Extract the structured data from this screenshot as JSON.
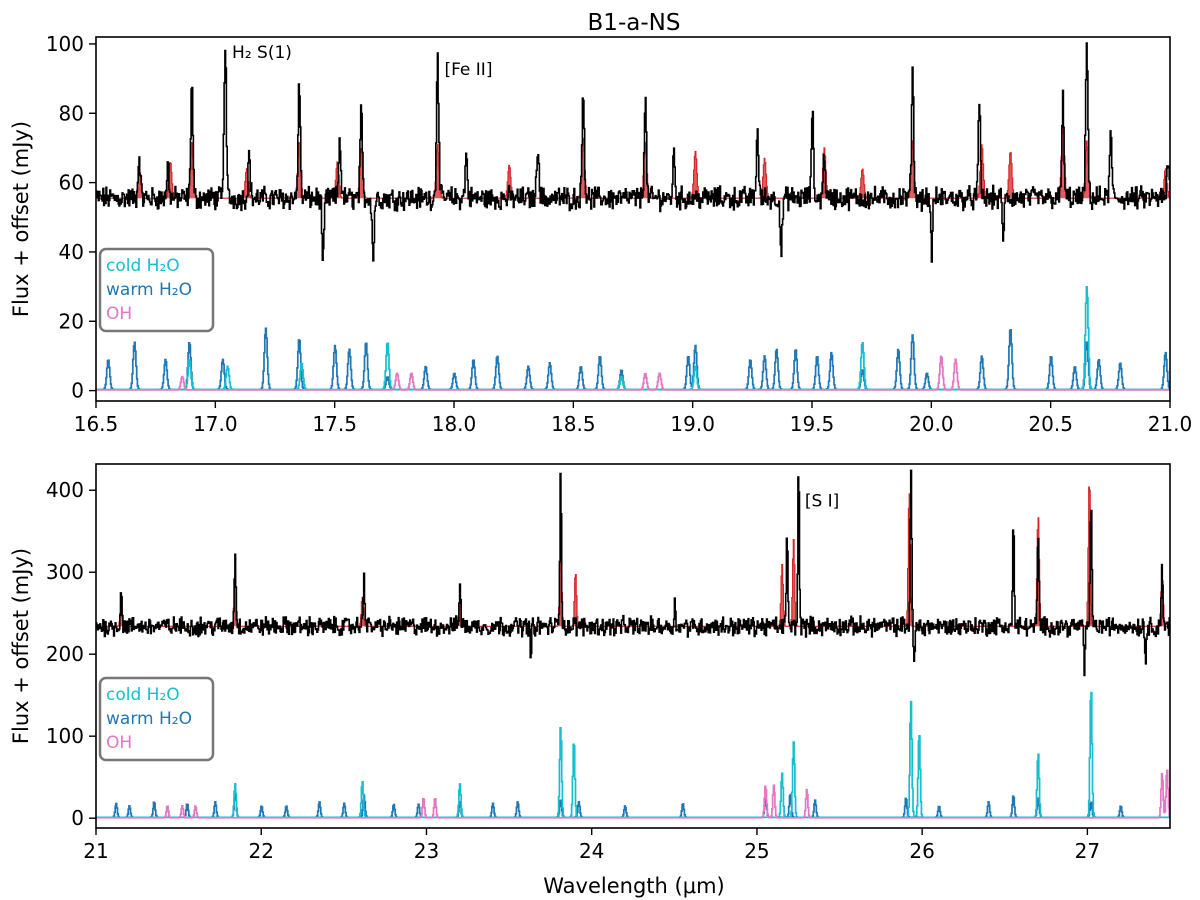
{
  "figure": {
    "title": "B1-a-NS",
    "xlabel": "Wavelength (μm)",
    "legend_entries": [
      {
        "label": "cold H₂O",
        "color": "#17becf"
      },
      {
        "label": "warm H₂O",
        "color": "#1f77b4"
      },
      {
        "label": "OH",
        "color": "#e377c2"
      }
    ]
  },
  "chart_data": [
    {
      "type": "line",
      "ylabel": "Flux + offset (mJy)",
      "xlim": [
        16.5,
        21.0
      ],
      "ylim": [
        -3,
        102
      ],
      "xticks": [
        16.5,
        17.0,
        17.5,
        18.0,
        18.5,
        19.0,
        19.5,
        20.0,
        20.5,
        21.0
      ],
      "xtick_labels": [
        "16.5",
        "17.0",
        "17.5",
        "18.0",
        "18.5",
        "19.0",
        "19.5",
        "20.0",
        "20.5",
        "21.0"
      ],
      "yticks": [
        0,
        20,
        40,
        60,
        80,
        100
      ],
      "ytick_labels": [
        "0",
        "20",
        "40",
        "60",
        "80",
        "100"
      ],
      "legend_position": "center-left",
      "colors": {
        "observed": "#000000",
        "model": "#d62728",
        "cold": "#17becf",
        "warm": "#1f77b4",
        "oh": "#e377c2"
      },
      "observed": {
        "baseline": 55.5,
        "noise": 2.6,
        "peaks": [
          [
            16.68,
            68
          ],
          [
            16.8,
            65
          ],
          [
            16.9,
            89
          ],
          [
            17.04,
            101
          ],
          [
            17.14,
            68
          ],
          [
            17.35,
            89
          ],
          [
            17.52,
            73
          ],
          [
            17.61,
            80
          ],
          [
            17.93,
            98
          ],
          [
            18.05,
            68
          ],
          [
            18.35,
            72
          ],
          [
            18.54,
            88
          ],
          [
            18.8,
            84
          ],
          [
            18.92,
            68
          ],
          [
            19.27,
            75
          ],
          [
            19.5,
            80
          ],
          [
            19.55,
            68
          ],
          [
            19.92,
            92
          ],
          [
            20.2,
            82
          ],
          [
            20.55,
            84
          ],
          [
            20.65,
            101
          ],
          [
            20.75,
            74
          ],
          [
            20.99,
            66
          ]
        ],
        "dips": [
          [
            17.45,
            36
          ],
          [
            17.66,
            38
          ],
          [
            19.37,
            39
          ],
          [
            20.0,
            40
          ],
          [
            20.3,
            45
          ]
        ]
      },
      "model": {
        "baseline": 55.5,
        "peaks": [
          [
            16.68,
            64
          ],
          [
            16.81,
            66
          ],
          [
            16.9,
            72
          ],
          [
            17.13,
            64
          ],
          [
            17.35,
            72
          ],
          [
            17.51,
            66
          ],
          [
            17.61,
            70
          ],
          [
            17.93,
            71
          ],
          [
            18.23,
            65
          ],
          [
            18.54,
            73
          ],
          [
            18.8,
            72
          ],
          [
            19.01,
            69
          ],
          [
            19.3,
            67
          ],
          [
            19.55,
            70
          ],
          [
            19.71,
            64
          ],
          [
            19.92,
            72
          ],
          [
            20.21,
            71
          ],
          [
            20.33,
            69
          ],
          [
            20.55,
            77
          ],
          [
            20.65,
            72
          ],
          [
            20.98,
            64
          ]
        ]
      },
      "cold": {
        "baseline": 0.3,
        "peaks": [
          [
            16.89,
            9
          ],
          [
            17.05,
            7
          ],
          [
            17.36,
            8
          ],
          [
            17.72,
            14
          ],
          [
            18.7,
            4
          ],
          [
            19.01,
            7
          ],
          [
            19.71,
            14
          ],
          [
            20.65,
            30
          ]
        ]
      },
      "warm": {
        "baseline": 0.3,
        "peaks": [
          [
            16.55,
            9
          ],
          [
            16.66,
            14
          ],
          [
            16.79,
            9
          ],
          [
            16.89,
            14
          ],
          [
            17.03,
            9
          ],
          [
            17.21,
            18
          ],
          [
            17.35,
            15
          ],
          [
            17.5,
            13
          ],
          [
            17.56,
            12
          ],
          [
            17.63,
            14
          ],
          [
            17.72,
            4
          ],
          [
            17.88,
            7
          ],
          [
            18.0,
            5
          ],
          [
            18.08,
            9
          ],
          [
            18.18,
            10
          ],
          [
            18.31,
            7
          ],
          [
            18.4,
            8
          ],
          [
            18.53,
            7
          ],
          [
            18.61,
            10
          ],
          [
            18.7,
            6
          ],
          [
            18.98,
            10
          ],
          [
            19.01,
            13
          ],
          [
            19.24,
            9
          ],
          [
            19.3,
            10
          ],
          [
            19.35,
            12
          ],
          [
            19.43,
            12
          ],
          [
            19.52,
            10
          ],
          [
            19.58,
            11
          ],
          [
            19.71,
            6
          ],
          [
            19.86,
            12
          ],
          [
            19.92,
            16
          ],
          [
            19.98,
            5
          ],
          [
            20.21,
            10
          ],
          [
            20.33,
            18
          ],
          [
            20.5,
            10
          ],
          [
            20.6,
            7
          ],
          [
            20.65,
            14
          ],
          [
            20.7,
            9
          ],
          [
            20.79,
            8
          ],
          [
            20.98,
            11
          ]
        ]
      },
      "oh": {
        "baseline": 0.2,
        "peaks": [
          [
            16.86,
            4
          ],
          [
            17.76,
            5
          ],
          [
            17.82,
            5
          ],
          [
            18.8,
            5
          ],
          [
            18.86,
            5
          ],
          [
            20.04,
            10
          ],
          [
            20.1,
            9
          ]
        ]
      },
      "annotations": [
        {
          "text": "H₂ S(1)",
          "x": 17.07,
          "y": 96
        },
        {
          "text": "[Fe II]",
          "x": 17.96,
          "y": 91
        }
      ]
    },
    {
      "type": "line",
      "ylabel": "Flux + offset (mJy)",
      "xlim": [
        21.0,
        27.5
      ],
      "ylim": [
        -12,
        432
      ],
      "xticks": [
        21,
        22,
        23,
        24,
        25,
        26,
        27
      ],
      "xtick_labels": [
        "21",
        "22",
        "23",
        "24",
        "25",
        "26",
        "27"
      ],
      "yticks": [
        0,
        100,
        200,
        300,
        400
      ],
      "ytick_labels": [
        "0",
        "100",
        "200",
        "300",
        "400"
      ],
      "legend_position": "center-left",
      "colors": {
        "observed": "#000000",
        "model": "#d62728",
        "cold": "#17becf",
        "warm": "#1f77b4",
        "oh": "#e377c2"
      },
      "observed": {
        "baseline": 234,
        "noise": 9,
        "peaks": [
          [
            21.15,
            280
          ],
          [
            21.84,
            328
          ],
          [
            22.62,
            305
          ],
          [
            23.2,
            290
          ],
          [
            23.81,
            430
          ],
          [
            24.5,
            260
          ],
          [
            25.18,
            345
          ],
          [
            25.25,
            430
          ],
          [
            25.93,
            430
          ],
          [
            26.55,
            360
          ],
          [
            26.7,
            350
          ],
          [
            27.02,
            400
          ],
          [
            27.45,
            310
          ]
        ],
        "dips": [
          [
            23.63,
            195
          ],
          [
            25.95,
            185
          ],
          [
            26.98,
            180
          ],
          [
            27.35,
            190
          ]
        ]
      },
      "model": {
        "baseline": 234,
        "peaks": [
          [
            21.15,
            260
          ],
          [
            21.84,
            300
          ],
          [
            22.61,
            270
          ],
          [
            23.2,
            265
          ],
          [
            23.81,
            338
          ],
          [
            23.9,
            300
          ],
          [
            25.15,
            310
          ],
          [
            25.22,
            340
          ],
          [
            25.92,
            400
          ],
          [
            26.7,
            370
          ],
          [
            27.01,
            415
          ],
          [
            27.45,
            300
          ]
        ]
      },
      "cold": {
        "baseline": 1,
        "peaks": [
          [
            21.84,
            42
          ],
          [
            22.61,
            45
          ],
          [
            23.2,
            42
          ],
          [
            23.81,
            112
          ],
          [
            23.89,
            96
          ],
          [
            25.15,
            55
          ],
          [
            25.22,
            93
          ],
          [
            25.93,
            143
          ],
          [
            25.98,
            105
          ],
          [
            26.7,
            80
          ],
          [
            27.02,
            160
          ]
        ]
      },
      "warm": {
        "baseline": 1,
        "peaks": [
          [
            21.12,
            18
          ],
          [
            21.2,
            15
          ],
          [
            21.35,
            20
          ],
          [
            21.55,
            18
          ],
          [
            21.72,
            20
          ],
          [
            21.84,
            30
          ],
          [
            22.0,
            15
          ],
          [
            22.15,
            15
          ],
          [
            22.35,
            20
          ],
          [
            22.5,
            18
          ],
          [
            22.62,
            28
          ],
          [
            22.8,
            17
          ],
          [
            22.95,
            17
          ],
          [
            23.2,
            20
          ],
          [
            23.4,
            18
          ],
          [
            23.55,
            20
          ],
          [
            23.81,
            22
          ],
          [
            23.92,
            20
          ],
          [
            24.2,
            15
          ],
          [
            24.55,
            18
          ],
          [
            25.05,
            25
          ],
          [
            25.2,
            30
          ],
          [
            25.35,
            22
          ],
          [
            25.9,
            25
          ],
          [
            26.1,
            15
          ],
          [
            26.4,
            20
          ],
          [
            26.55,
            28
          ],
          [
            26.7,
            25
          ],
          [
            27.02,
            20
          ],
          [
            27.2,
            15
          ]
        ]
      },
      "oh": {
        "baseline": 0.5,
        "peaks": [
          [
            21.43,
            15
          ],
          [
            21.52,
            15
          ],
          [
            21.6,
            15
          ],
          [
            22.98,
            25
          ],
          [
            23.05,
            25
          ],
          [
            25.05,
            40
          ],
          [
            25.1,
            40
          ],
          [
            25.3,
            35
          ],
          [
            27.45,
            55
          ],
          [
            27.48,
            60
          ]
        ]
      },
      "annotations": [
        {
          "text": "[S I]",
          "x": 25.29,
          "y": 380
        }
      ]
    }
  ]
}
